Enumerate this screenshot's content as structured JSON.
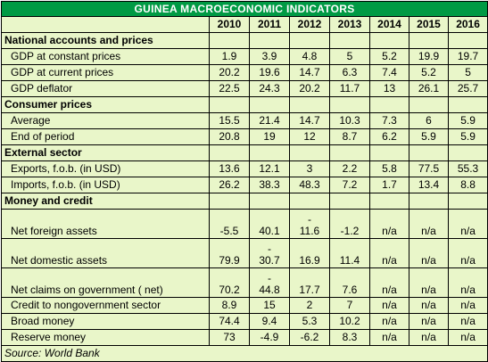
{
  "title": "GUINEA MACROECONOMIC INDICATORS",
  "years": [
    "2010",
    "2011",
    "2012",
    "2013",
    "2014",
    "2015",
    "2016"
  ],
  "sections": [
    {
      "heading": "National accounts and prices",
      "rows": [
        {
          "label": "GDP at constant prices",
          "values": [
            "1.9",
            "3.9",
            "4.8",
            "5",
            "5.2",
            "19.9",
            "19.7"
          ]
        },
        {
          "label": "GDP at current prices",
          "values": [
            "20.2",
            "19.6",
            "14.7",
            "6.3",
            "7.4",
            "5.2",
            "5"
          ]
        },
        {
          "label": "GDP deflator",
          "values": [
            "22.5",
            "24.3",
            "20.2",
            "11.7",
            "13",
            "26.1",
            "25.7"
          ]
        }
      ]
    },
    {
      "heading": "Consumer prices",
      "rows": [
        {
          "label": "Average",
          "values": [
            "15.5",
            "21.4",
            "14.7",
            "10.3",
            "7.3",
            "6",
            "5.9"
          ]
        },
        {
          "label": "End of period",
          "values": [
            "20.8",
            "19",
            "12",
            "8.7",
            "6.2",
            "5.9",
            "5.9"
          ]
        }
      ]
    },
    {
      "heading": "External sector",
      "rows": [
        {
          "label": "Exports, f.o.b. (in USD)",
          "values": [
            "13.6",
            "12.1",
            "3",
            "2.2",
            "5.8",
            "77.5",
            "55.3"
          ]
        },
        {
          "label": "Imports, f.o.b. (in USD)",
          "values": [
            "26.2",
            "38.3",
            "48.3",
            "7.2",
            "1.7",
            "13.4",
            "8.8"
          ]
        }
      ]
    },
    {
      "heading": "Money and credit",
      "rows": [
        {
          "label": "Net foreign assets",
          "values": [
            "-5.5",
            "40.1",
            "-\n11.6",
            "-1.2",
            "n/a",
            "n/a",
            "n/a"
          ],
          "tall": true
        },
        {
          "label": "Net domestic assets",
          "values": [
            "79.9",
            "-\n30.7",
            "16.9",
            "11.4",
            "n/a",
            "n/a",
            "n/a"
          ],
          "tall": true
        },
        {
          "label": "Net claims on government ( net)",
          "values": [
            "70.2",
            "-\n44.8",
            "17.7",
            "7.6",
            "n/a",
            "n/a",
            "n/a"
          ],
          "tall": true
        },
        {
          "label": "Credit to nongovernment sector",
          "values": [
            "8.9",
            "15",
            "2",
            "7",
            "n/a",
            "n/a",
            "n/a"
          ]
        },
        {
          "label": "Broad money",
          "values": [
            "74.4",
            "9.4",
            "5.3",
            "10.2",
            "n/a",
            "n/a",
            "n/a"
          ]
        },
        {
          "label": "Reserve money",
          "values": [
            "73",
            "-4.9",
            "-6.2",
            "8.3",
            "n/a",
            "n/a",
            "n/a"
          ]
        }
      ]
    }
  ],
  "source": "Source: World Bank",
  "colors": {
    "header_green": "#009A44",
    "cell_bg": "#E9F6C9"
  }
}
